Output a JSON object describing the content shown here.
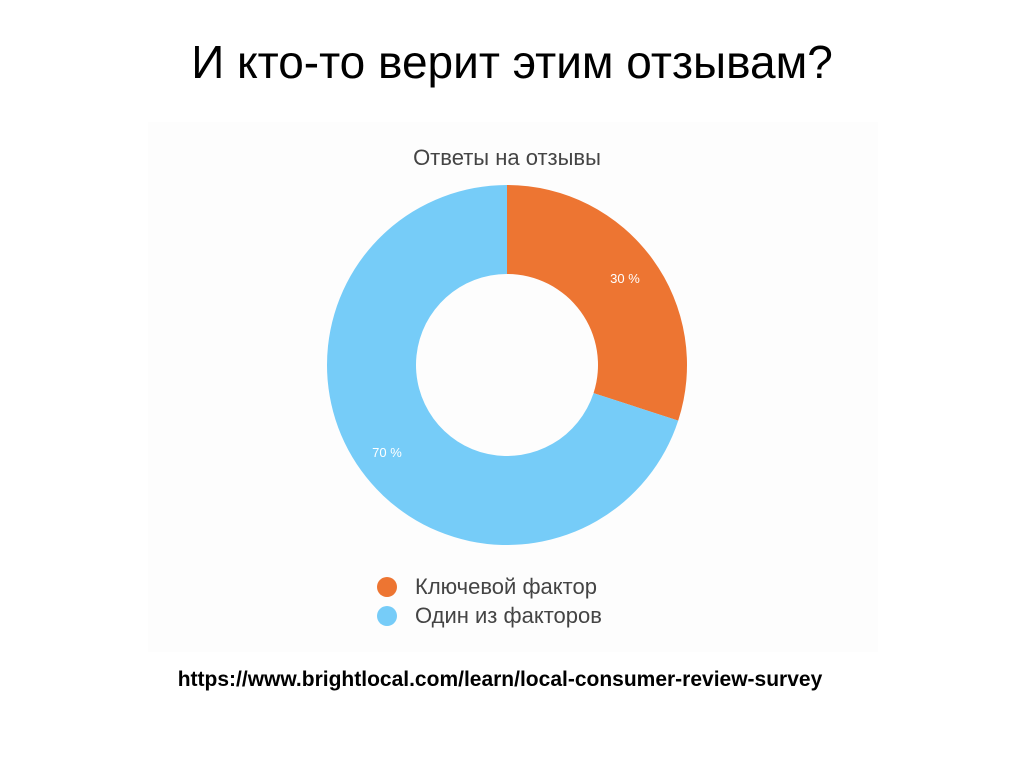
{
  "slide": {
    "title": "И кто-то верит этим отзывам?",
    "source": "https://www.brightlocal.com/learn/local-consumer-review-survey"
  },
  "chart_data": {
    "type": "pie",
    "title": "Ответы на отзывы",
    "donut": true,
    "legend_position": "bottom",
    "slices": [
      {
        "label": "Ключевой фактор",
        "value": 30,
        "display": "30 %",
        "color": "#ED7532"
      },
      {
        "label": "Один из факторов",
        "value": 70,
        "display": "70 %",
        "color": "#76CCF8"
      }
    ]
  }
}
